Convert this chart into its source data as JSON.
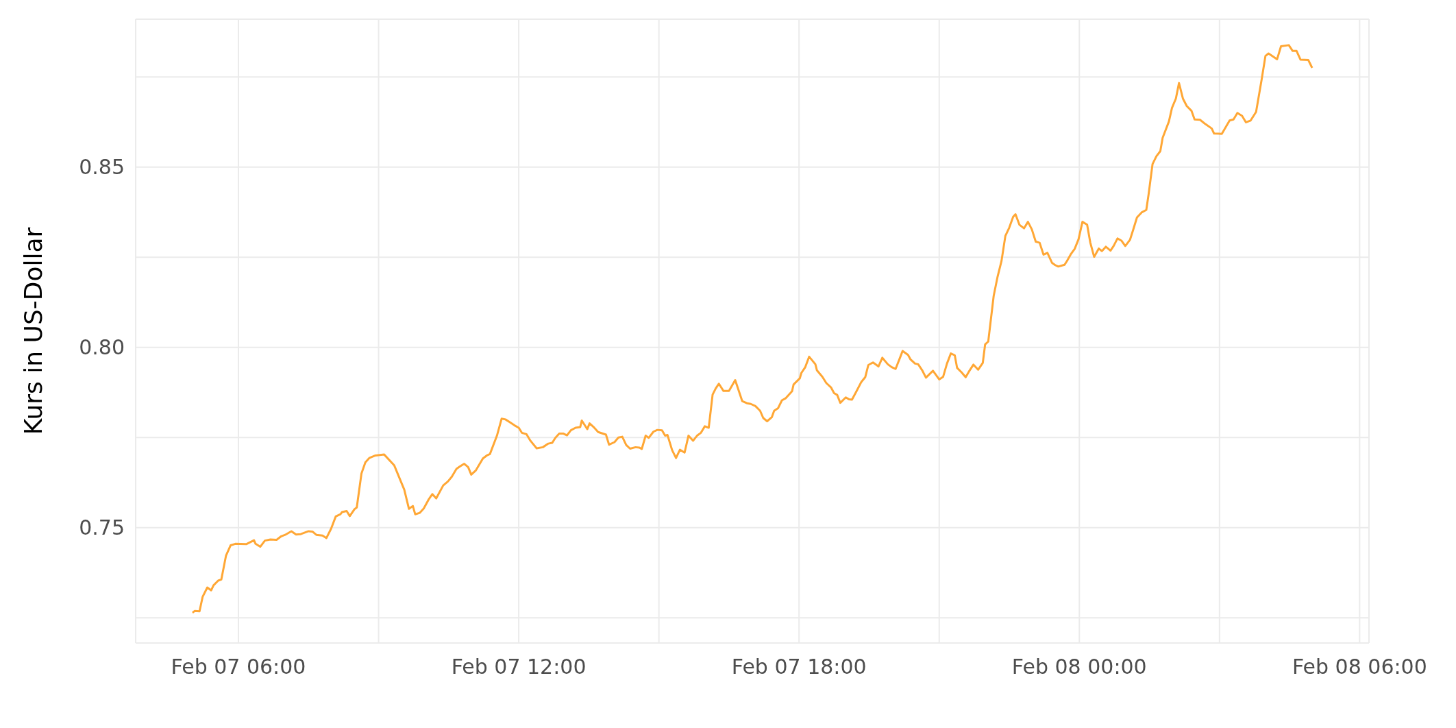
{
  "chart_data": {
    "type": "line",
    "ylabel": "Kurs in US-Dollar",
    "color": "#ffa735",
    "grid": true,
    "xlim": [
      "--02-07T03:48",
      "--02-08T06:12"
    ],
    "xticks": [
      {
        "value": "--02-07T06:00",
        "label": "Feb 07 06:00"
      },
      {
        "value": "--02-07T09:00",
        "label": null
      },
      {
        "value": "--02-07T12:00",
        "label": "Feb 07 12:00"
      },
      {
        "value": "--02-07T15:00",
        "label": null
      },
      {
        "value": "--02-07T18:00",
        "label": "Feb 07 18:00"
      },
      {
        "value": "--02-07T21:00",
        "label": null
      },
      {
        "value": "--02-08T00:00",
        "label": "Feb 08 00:00"
      },
      {
        "value": "--02-08T03:00",
        "label": null
      },
      {
        "value": "--02-08T06:00",
        "label": "Feb 08 06:00"
      }
    ],
    "ylim": [
      0.718,
      0.891
    ],
    "yticks": [
      {
        "value": 0.725,
        "label": null
      },
      {
        "value": 0.75,
        "label": "0.75"
      },
      {
        "value": 0.775,
        "label": null
      },
      {
        "value": 0.8,
        "label": "0.80"
      },
      {
        "value": 0.825,
        "label": null
      },
      {
        "value": 0.85,
        "label": "0.85"
      },
      {
        "value": 0.875,
        "label": null
      }
    ],
    "x": [
      "--02-07T05:01",
      "--02-07T05:04",
      "--02-07T05:10",
      "--02-07T05:14",
      "--02-07T05:20",
      "--02-07T05:25",
      "--02-07T05:28",
      "--02-07T05:34",
      "--02-07T05:38",
      "--02-07T05:44",
      "--02-07T05:50",
      "--02-07T05:56",
      "--02-07T06:10",
      "--02-07T06:20",
      "--02-07T06:22",
      "--02-07T06:28",
      "--02-07T06:34",
      "--02-07T06:41",
      "--02-07T06:49",
      "--02-07T06:55",
      "--02-07T07:00",
      "--02-07T07:08",
      "--02-07T07:14",
      "--02-07T07:20",
      "--02-07T07:30",
      "--02-07T07:35",
      "--02-07T07:40",
      "--02-07T07:48",
      "--02-07T07:53",
      "--02-07T07:59",
      "--02-07T08:05",
      "--02-07T08:11",
      "--02-07T08:13",
      "--02-07T08:19",
      "--02-07T08:23",
      "--02-07T08:29",
      "--02-07T08:32",
      "--02-07T08:38",
      "--02-07T08:43",
      "--02-07T08:48",
      "--02-07T08:56",
      "--02-07T09:07",
      "--02-07T09:20",
      "--02-07T09:33",
      "--02-07T09:39",
      "--02-07T09:44",
      "--02-07T09:47",
      "--02-07T09:53",
      "--02-07T09:58",
      "--02-07T10:04",
      "--02-07T10:09",
      "--02-07T10:14",
      "--02-07T10:23",
      "--02-07T10:29",
      "--02-07T10:34",
      "--02-07T10:40",
      "--02-07T10:44",
      "--02-07T10:50",
      "--02-07T10:55",
      "--02-07T10:59",
      "--02-07T11:05",
      "--02-07T11:14",
      "--02-07T11:19",
      "--02-07T11:23",
      "--02-07T11:32",
      "--02-07T11:38",
      "--02-07T11:43",
      "--02-07T11:48",
      "--02-07T11:55",
      "--02-07T12:00",
      "--02-07T12:04",
      "--02-07T12:10",
      "--02-07T12:15",
      "--02-07T12:23",
      "--02-07T12:31",
      "--02-07T12:38",
      "--02-07T12:43",
      "--02-07T12:47",
      "--02-07T12:52",
      "--02-07T12:57",
      "--02-07T13:02",
      "--02-07T13:07",
      "--02-07T13:13",
      "--02-07T13:19",
      "--02-07T13:21",
      "--02-07T13:28",
      "--02-07T13:31",
      "--02-07T13:37",
      "--02-07T13:42",
      "--02-07T13:52",
      "--02-07T13:56",
      "--02-07T14:03",
      "--02-07T14:08",
      "--02-07T14:13",
      "--02-07T14:18",
      "--02-07T14:23",
      "--02-07T14:30",
      "--02-07T14:35",
      "--02-07T14:38",
      "--02-07T14:43",
      "--02-07T14:47",
      "--02-07T14:53",
      "--02-07T14:58",
      "--02-07T15:04",
      "--02-07T15:08",
      "--02-07T15:11",
      "--02-07T15:17",
      "--02-07T15:22",
      "--02-07T15:27",
      "--02-07T15:33",
      "--02-07T15:38",
      "--02-07T15:44",
      "--02-07T15:49",
      "--02-07T15:54",
      "--02-07T15:59",
      "--02-07T16:04",
      "--02-07T16:09",
      "--02-07T16:13",
      "--02-07T16:17",
      "--02-07T16:23",
      "--02-07T16:30",
      "--02-07T16:38",
      "--02-07T16:47",
      "--02-07T16:53",
      "--02-07T16:58",
      "--02-07T17:04",
      "--02-07T17:10",
      "--02-07T17:14",
      "--02-07T17:19",
      "--02-07T17:25",
      "--02-07T17:28",
      "--02-07T17:33",
      "--02-07T17:38",
      "--02-07T17:43",
      "--02-07T17:51",
      "--02-07T17:53",
      "--02-07T18:01",
      "--02-07T18:03",
      "--02-07T18:08",
      "--02-07T18:13",
      "--02-07T18:21",
      "--02-07T18:23",
      "--02-07T18:30",
      "--02-07T18:35",
      "--02-07T18:41",
      "--02-07T18:45",
      "--02-07T18:49",
      "--02-07T18:53",
      "--02-07T19:00",
      "--02-07T19:04",
      "--02-07T19:08",
      "--02-07T19:14",
      "--02-07T19:20",
      "--02-07T19:25",
      "--02-07T19:29",
      "--02-07T19:35",
      "--02-07T19:42",
      "--02-07T19:47",
      "--02-07T19:54",
      "--02-07T19:59",
      "--02-07T20:04",
      "--02-07T20:10",
      "--02-07T20:13",
      "--02-07T20:20",
      "--02-07T20:23",
      "--02-07T20:29",
      "--02-07T20:33",
      "--02-07T20:38",
      "--02-07T20:43",
      "--02-07T20:52",
      "--02-07T21:00",
      "--02-07T21:05",
      "--02-07T21:10",
      "--02-07T21:15",
      "--02-07T21:20",
      "--02-07T21:23",
      "--02-07T21:29",
      "--02-07T21:34",
      "--02-07T21:38",
      "--02-07T21:44",
      "--02-07T21:50",
      "--02-07T21:56",
      "--02-07T21:59",
      "--02-07T22:03",
      "--02-07T22:10",
      "--02-07T22:15",
      "--02-07T22:20",
      "--02-07T22:25",
      "--02-07T22:30",
      "--02-07T22:35",
      "--02-07T22:38",
      "--02-07T22:43",
      "--02-07T22:49",
      "--02-07T22:54",
      "--02-07T22:59",
      "--02-07T23:04",
      "--02-07T23:09",
      "--02-07T23:14",
      "--02-07T23:19",
      "--02-07T23:25",
      "--02-07T23:29",
      "--02-07T23:33",
      "--02-07T23:41",
      "--02-07T23:44",
      "--02-07T23:49",
      "--02-07T23:54",
      "--02-07T23:59",
      "--02-08T00:04",
      "--02-08T00:10",
      "--02-08T00:14",
      "--02-08T00:19",
      "--02-08T00:25",
      "--02-08T00:29",
      "--02-08T00:34",
      "--02-08T00:40",
      "--02-08T00:44",
      "--02-08T00:49",
      "--02-08T00:54",
      "--02-08T00:59",
      "--02-08T01:05",
      "--02-08T01:09",
      "--02-08T01:14",
      "--02-08T01:20",
      "--02-08T01:26",
      "--02-08T01:29",
      "--02-08T01:34",
      "--02-08T01:39",
      "--02-08T01:44",
      "--02-08T01:47",
      "--02-08T01:55",
      "--02-08T01:59",
      "--02-08T02:04",
      "--02-08T02:08",
      "--02-08T02:13",
      "--02-08T02:18",
      "--02-08T02:24",
      "--02-08T02:28",
      "--02-08T02:35",
      "--02-08T02:42",
      "--02-08T02:50",
      "--02-08T02:53",
      "--02-08T03:03",
      "--02-08T03:13",
      "--02-08T03:18",
      "--02-08T03:23",
      "--02-08T03:29",
      "--02-08T03:34",
      "--02-08T03:40",
      "--02-08T03:47",
      "--02-08T03:54",
      "--02-08T03:59",
      "--02-08T04:03",
      "--02-08T04:14",
      "--02-08T04:19",
      "--02-08T04:29",
      "--02-08T04:34",
      "--02-08T04:39",
      "--02-08T04:44",
      "--02-08T04:54",
      "--02-08T04:59"
    ],
    "values": [
      0.7264,
      0.7269,
      0.7268,
      0.7308,
      0.7334,
      0.7326,
      0.734,
      0.7353,
      0.7356,
      0.7422,
      0.7451,
      0.7455,
      0.7454,
      0.7465,
      0.7455,
      0.7447,
      0.7464,
      0.7467,
      0.7466,
      0.7476,
      0.748,
      0.749,
      0.7481,
      0.7482,
      0.749,
      0.7489,
      0.748,
      0.7478,
      0.7471,
      0.7497,
      0.7531,
      0.7537,
      0.7543,
      0.7546,
      0.7532,
      0.7551,
      0.7556,
      0.765,
      0.7681,
      0.7693,
      0.77,
      0.7703,
      0.7673,
      0.7605,
      0.7552,
      0.756,
      0.7537,
      0.7541,
      0.7553,
      0.7577,
      0.7593,
      0.7581,
      0.7617,
      0.7628,
      0.7641,
      0.7663,
      0.7669,
      0.7677,
      0.7668,
      0.7647,
      0.7659,
      0.7692,
      0.77,
      0.7704,
      0.7755,
      0.7802,
      0.78,
      0.7793,
      0.7783,
      0.7777,
      0.7763,
      0.7759,
      0.7741,
      0.772,
      0.7723,
      0.7733,
      0.7735,
      0.7749,
      0.7761,
      0.7761,
      0.7756,
      0.777,
      0.7777,
      0.7779,
      0.7797,
      0.7773,
      0.7789,
      0.7777,
      0.7765,
      0.7758,
      0.773,
      0.7737,
      0.775,
      0.7752,
      0.7729,
      0.7719,
      0.7723,
      0.7722,
      0.7718,
      0.7755,
      0.7749,
      0.7766,
      0.7771,
      0.777,
      0.7755,
      0.7757,
      0.7715,
      0.7693,
      0.7716,
      0.7708,
      0.7755,
      0.7741,
      0.7755,
      0.7763,
      0.7781,
      0.7777,
      0.7869,
      0.7886,
      0.7899,
      0.7879,
      0.7879,
      0.7909,
      0.7851,
      0.7845,
      0.7843,
      0.7837,
      0.7824,
      0.7804,
      0.7795,
      0.7806,
      0.7824,
      0.7831,
      0.7853,
      0.7859,
      0.7878,
      0.7897,
      0.7914,
      0.7929,
      0.7945,
      0.7974,
      0.7953,
      0.7936,
      0.7918,
      0.7901,
      0.7889,
      0.7873,
      0.7868,
      0.7846,
      0.7861,
      0.7856,
      0.7855,
      0.7879,
      0.7904,
      0.7917,
      0.7951,
      0.7958,
      0.7947,
      0.7971,
      0.7953,
      0.7945,
      0.794,
      0.7973,
      0.799,
      0.7979,
      0.7967,
      0.7955,
      0.7953,
      0.7937,
      0.7916,
      0.7935,
      0.7911,
      0.7918,
      0.7955,
      0.7983,
      0.7978,
      0.7943,
      0.793,
      0.7917,
      0.7932,
      0.7952,
      0.7938,
      0.7957,
      0.8008,
      0.8016,
      0.8143,
      0.8196,
      0.8239,
      0.8309,
      0.8332,
      0.8362,
      0.8369,
      0.834,
      0.833,
      0.8348,
      0.8327,
      0.8293,
      0.829,
      0.8257,
      0.8262,
      0.8234,
      0.8228,
      0.8224,
      0.8229,
      0.8239,
      0.8258,
      0.8273,
      0.83,
      0.8348,
      0.834,
      0.8291,
      0.8251,
      0.8274,
      0.8267,
      0.8279,
      0.8268,
      0.8281,
      0.8302,
      0.8296,
      0.8281,
      0.8298,
      0.8325,
      0.836,
      0.8374,
      0.8381,
      0.8425,
      0.8508,
      0.853,
      0.8544,
      0.8581,
      0.8626,
      0.8664,
      0.869,
      0.8733,
      0.869,
      0.8669,
      0.8656,
      0.8632,
      0.8631,
      0.8619,
      0.8607,
      0.8593,
      0.8592,
      0.8629,
      0.8632,
      0.865,
      0.8642,
      0.8624,
      0.8629,
      0.8653,
      0.8741,
      0.8808,
      0.8815,
      0.8799,
      0.8835,
      0.8838,
      0.8822,
      0.8822,
      0.8798,
      0.8797,
      0.8775
    ]
  }
}
